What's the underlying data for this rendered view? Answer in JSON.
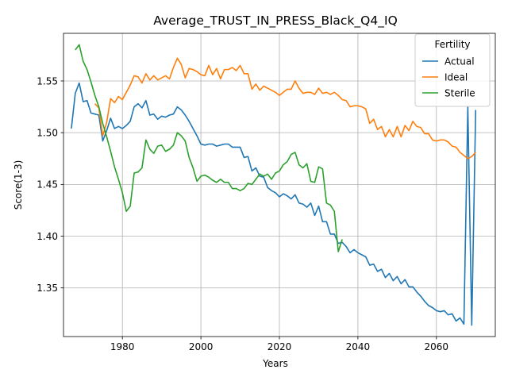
{
  "chart_data": {
    "type": "line",
    "title": "Average_TRUST_IN_PRESS_Black_Q4_IQ",
    "xlabel": "Years",
    "ylabel": "Score(1-3)",
    "xlim": [
      1965,
      2075
    ],
    "ylim": [
      1.303,
      1.596
    ],
    "xticks": [
      1980,
      2000,
      2020,
      2040,
      2060
    ],
    "yticks": [
      1.35,
      1.4,
      1.45,
      1.5,
      1.55
    ],
    "ytick_labels": [
      "1.35",
      "1.40",
      "1.45",
      "1.50",
      "1.55"
    ],
    "grid": true,
    "legend": {
      "title": "Fertility",
      "placement": "top-right",
      "entries": [
        "Actual",
        "Ideal",
        "Sterile"
      ]
    },
    "series": [
      {
        "name": "Actual",
        "color": "#1f77b4",
        "x": [
          1967,
          1968,
          1969,
          1970,
          1971,
          1972,
          1973,
          1974,
          1975,
          1976,
          1977,
          1978,
          1979,
          1980,
          1981,
          1982,
          1983,
          1984,
          1985,
          1986,
          1987,
          1988,
          1989,
          1990,
          1991,
          1992,
          1993,
          1994,
          1995,
          1996,
          1997,
          1998,
          1999,
          2000,
          2001,
          2002,
          2003,
          2004,
          2005,
          2006,
          2007,
          2008,
          2009,
          2010,
          2011,
          2012,
          2013,
          2014,
          2015,
          2016,
          2017,
          2018,
          2019,
          2020,
          2021,
          2022,
          2023,
          2024,
          2025,
          2026,
          2027,
          2028,
          2029,
          2030,
          2031,
          2032,
          2033,
          2034,
          2035,
          2036,
          2037,
          2038,
          2039,
          2040,
          2041,
          2042,
          2043,
          2044,
          2045,
          2046,
          2047,
          2048,
          2049,
          2050,
          2051,
          2052,
          2053,
          2054,
          2055,
          2056,
          2057,
          2058,
          2059,
          2060,
          2061,
          2062,
          2063,
          2064,
          2065,
          2066,
          2067,
          2068,
          2069,
          2070
        ],
        "values": [
          1.504,
          1.538,
          1.548,
          1.53,
          1.531,
          1.519,
          1.518,
          1.517,
          1.492,
          1.502,
          1.514,
          1.504,
          1.506,
          1.504,
          1.507,
          1.511,
          1.525,
          1.528,
          1.524,
          1.531,
          1.517,
          1.518,
          1.513,
          1.516,
          1.515,
          1.517,
          1.518,
          1.525,
          1.522,
          1.517,
          1.511,
          1.504,
          1.497,
          1.489,
          1.488,
          1.489,
          1.489,
          1.487,
          1.488,
          1.489,
          1.489,
          1.486,
          1.486,
          1.486,
          1.476,
          1.477,
          1.463,
          1.466,
          1.458,
          1.457,
          1.447,
          1.444,
          1.442,
          1.438,
          1.441,
          1.439,
          1.436,
          1.44,
          1.432,
          1.431,
          1.428,
          1.432,
          1.42,
          1.429,
          1.414,
          1.414,
          1.402,
          1.402,
          1.393,
          1.394,
          1.39,
          1.384,
          1.387,
          1.384,
          1.382,
          1.38,
          1.372,
          1.373,
          1.366,
          1.368,
          1.36,
          1.364,
          1.357,
          1.361,
          1.354,
          1.358,
          1.351,
          1.351,
          1.346,
          1.342,
          1.337,
          1.333,
          1.331,
          1.328,
          1.327,
          1.328,
          1.324,
          1.325,
          1.318,
          1.321,
          1.315,
          1.525,
          1.314,
          1.522
        ]
      },
      {
        "name": "Ideal",
        "color": "#ff7f0e",
        "x": [
          1973,
          1974,
          1975,
          1976,
          1977,
          1978,
          1979,
          1980,
          1981,
          1982,
          1983,
          1984,
          1985,
          1986,
          1987,
          1988,
          1989,
          1990,
          1991,
          1992,
          1993,
          1994,
          1995,
          1996,
          1997,
          1998,
          1999,
          2000,
          2001,
          2002,
          2003,
          2004,
          2005,
          2006,
          2007,
          2008,
          2009,
          2010,
          2011,
          2012,
          2013,
          2014,
          2015,
          2016,
          2017,
          2018,
          2019,
          2020,
          2021,
          2022,
          2023,
          2024,
          2025,
          2026,
          2027,
          2028,
          2029,
          2030,
          2031,
          2032,
          2033,
          2034,
          2035,
          2036,
          2037,
          2038,
          2039,
          2040,
          2041,
          2042,
          2043,
          2044,
          2045,
          2046,
          2047,
          2048,
          2049,
          2050,
          2051,
          2052,
          2053,
          2054,
          2055,
          2056,
          2057,
          2058,
          2059,
          2060,
          2061,
          2062,
          2063,
          2064,
          2065,
          2066,
          2067,
          2068,
          2069,
          2070
        ],
        "values": [
          1.528,
          1.524,
          1.497,
          1.51,
          1.533,
          1.529,
          1.535,
          1.532,
          1.539,
          1.546,
          1.555,
          1.554,
          1.548,
          1.557,
          1.551,
          1.555,
          1.551,
          1.553,
          1.555,
          1.552,
          1.563,
          1.572,
          1.566,
          1.553,
          1.562,
          1.561,
          1.559,
          1.556,
          1.555,
          1.565,
          1.556,
          1.562,
          1.552,
          1.561,
          1.561,
          1.563,
          1.56,
          1.565,
          1.557,
          1.557,
          1.542,
          1.547,
          1.541,
          1.545,
          1.543,
          1.541,
          1.539,
          1.536,
          1.539,
          1.542,
          1.542,
          1.55,
          1.543,
          1.538,
          1.539,
          1.539,
          1.537,
          1.543,
          1.538,
          1.539,
          1.537,
          1.539,
          1.536,
          1.532,
          1.531,
          1.525,
          1.526,
          1.526,
          1.525,
          1.523,
          1.509,
          1.513,
          1.503,
          1.506,
          1.496,
          1.503,
          1.496,
          1.506,
          1.496,
          1.507,
          1.502,
          1.511,
          1.506,
          1.505,
          1.499,
          1.499,
          1.493,
          1.492,
          1.493,
          1.493,
          1.491,
          1.487,
          1.486,
          1.481,
          1.478,
          1.475,
          1.477,
          1.481
        ]
      },
      {
        "name": "Sterile",
        "color": "#2ca02c",
        "x": [
          1968,
          1969,
          1970,
          1971,
          1972,
          1973,
          1974,
          1975,
          1976,
          1977,
          1978,
          1979,
          1980,
          1981,
          1982,
          1983,
          1984,
          1985,
          1986,
          1987,
          1988,
          1989,
          1990,
          1991,
          1992,
          1993,
          1994,
          1995,
          1996,
          1997,
          1998,
          1999,
          2000,
          2001,
          2002,
          2003,
          2004,
          2005,
          2006,
          2007,
          2008,
          2009,
          2010,
          2011,
          2012,
          2013,
          2014,
          2015,
          2016,
          2017,
          2018,
          2019,
          2020,
          2021,
          2022,
          2023,
          2024,
          2025,
          2026,
          2027,
          2028,
          2029,
          2030,
          2031,
          2032,
          2033,
          2034,
          2035,
          2036
        ],
        "values": [
          1.58,
          1.585,
          1.569,
          1.561,
          1.549,
          1.536,
          1.525,
          1.509,
          1.496,
          1.482,
          1.467,
          1.455,
          1.442,
          1.424,
          1.429,
          1.461,
          1.462,
          1.466,
          1.493,
          1.484,
          1.48,
          1.487,
          1.488,
          1.482,
          1.484,
          1.488,
          1.5,
          1.497,
          1.492,
          1.476,
          1.466,
          1.453,
          1.458,
          1.459,
          1.457,
          1.454,
          1.452,
          1.455,
          1.452,
          1.452,
          1.446,
          1.446,
          1.444,
          1.446,
          1.451,
          1.45,
          1.455,
          1.46,
          1.458,
          1.46,
          1.455,
          1.461,
          1.463,
          1.469,
          1.472,
          1.479,
          1.481,
          1.469,
          1.466,
          1.47,
          1.453,
          1.452,
          1.467,
          1.465,
          1.432,
          1.43,
          1.424,
          1.385,
          1.397
        ]
      }
    ]
  }
}
